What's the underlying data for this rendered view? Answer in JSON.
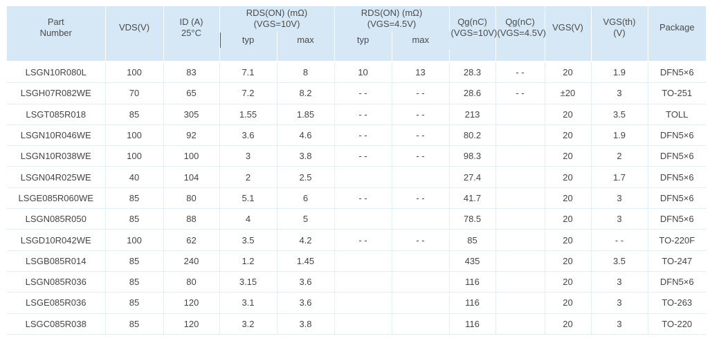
{
  "table": {
    "headers": {
      "part_number": "Part\nNumber",
      "vds": "VDS(V)",
      "id": "ID (A)\n25°C",
      "rds10": "RDS(ON) (mΩ)\n(VGS=10V)",
      "rds45": "RDS(ON) (mΩ)\n(VGS=4.5V)",
      "qg10": "Qg(nC)\n(VGS=10V)",
      "qg45": "Qg(nC)\n(VGS=4.5V)",
      "vgs": "VGS(V)",
      "vgsth": "VGS(th)\n(V)",
      "package": "Package",
      "typ": "typ",
      "max": "max"
    },
    "rows": [
      [
        "LSGN10R080L",
        "100",
        "83",
        "7.1",
        "8",
        "10",
        "13",
        "28.3",
        "- -",
        "20",
        "1.9",
        "DFN5×6"
      ],
      [
        "LSGH07R082WE",
        "70",
        "65",
        "7.2",
        "8.2",
        "- -",
        "- -",
        "28.6",
        "- -",
        "±20",
        "3",
        "TO-251"
      ],
      [
        "LSGT085R018",
        "85",
        "305",
        "1.55",
        "1.85",
        "- -",
        "- -",
        "213",
        "",
        "20",
        "3.5",
        "TOLL"
      ],
      [
        "LSGN10R046WE",
        "100",
        "92",
        "3.6",
        "4.6",
        "- -",
        "- -",
        "80.2",
        "",
        "20",
        "1.9",
        "DFN5×6"
      ],
      [
        "LSGN10R038WE",
        "100",
        "100",
        "3",
        "3.8",
        "- -",
        "- -",
        "98.3",
        "",
        "20",
        "2",
        "DFN5×6"
      ],
      [
        "LSGN04R025WE",
        "40",
        "104",
        "2",
        "2.5",
        "",
        "",
        "27.4",
        "",
        "20",
        "1.7",
        "DFN5×6"
      ],
      [
        "LSGE085R060WE",
        "85",
        "80",
        "5.1",
        "6",
        "- -",
        "- -",
        "41.7",
        "",
        "20",
        "3",
        "DFN5×6"
      ],
      [
        "LSGN085R050",
        "85",
        "88",
        "4",
        "5",
        "",
        "",
        "78.5",
        "",
        "20",
        "3",
        "DFN5×6"
      ],
      [
        "LSGD10R042WE",
        "100",
        "62",
        "3.5",
        "4.2",
        "- -",
        "- -",
        "85",
        "",
        "20",
        "- -",
        "TO-220F"
      ],
      [
        "LSGB085R014",
        "85",
        "240",
        "1.2",
        "1.45",
        "",
        "",
        "435",
        "",
        "20",
        "3.5",
        "TO-247"
      ],
      [
        "LSGN085R036",
        "85",
        "80",
        "3.15",
        "3.6",
        "",
        "",
        "116",
        "",
        "20",
        "3",
        "DFN5×6"
      ],
      [
        "LSGE085R036",
        "85",
        "120",
        "3.1",
        "3.6",
        "",
        "",
        "116",
        "",
        "20",
        "3",
        "TO-263"
      ],
      [
        "LSGC085R038",
        "85",
        "120",
        "3.2",
        "3.8",
        "",
        "",
        "116",
        "",
        "20",
        "3",
        "TO-220"
      ]
    ]
  }
}
